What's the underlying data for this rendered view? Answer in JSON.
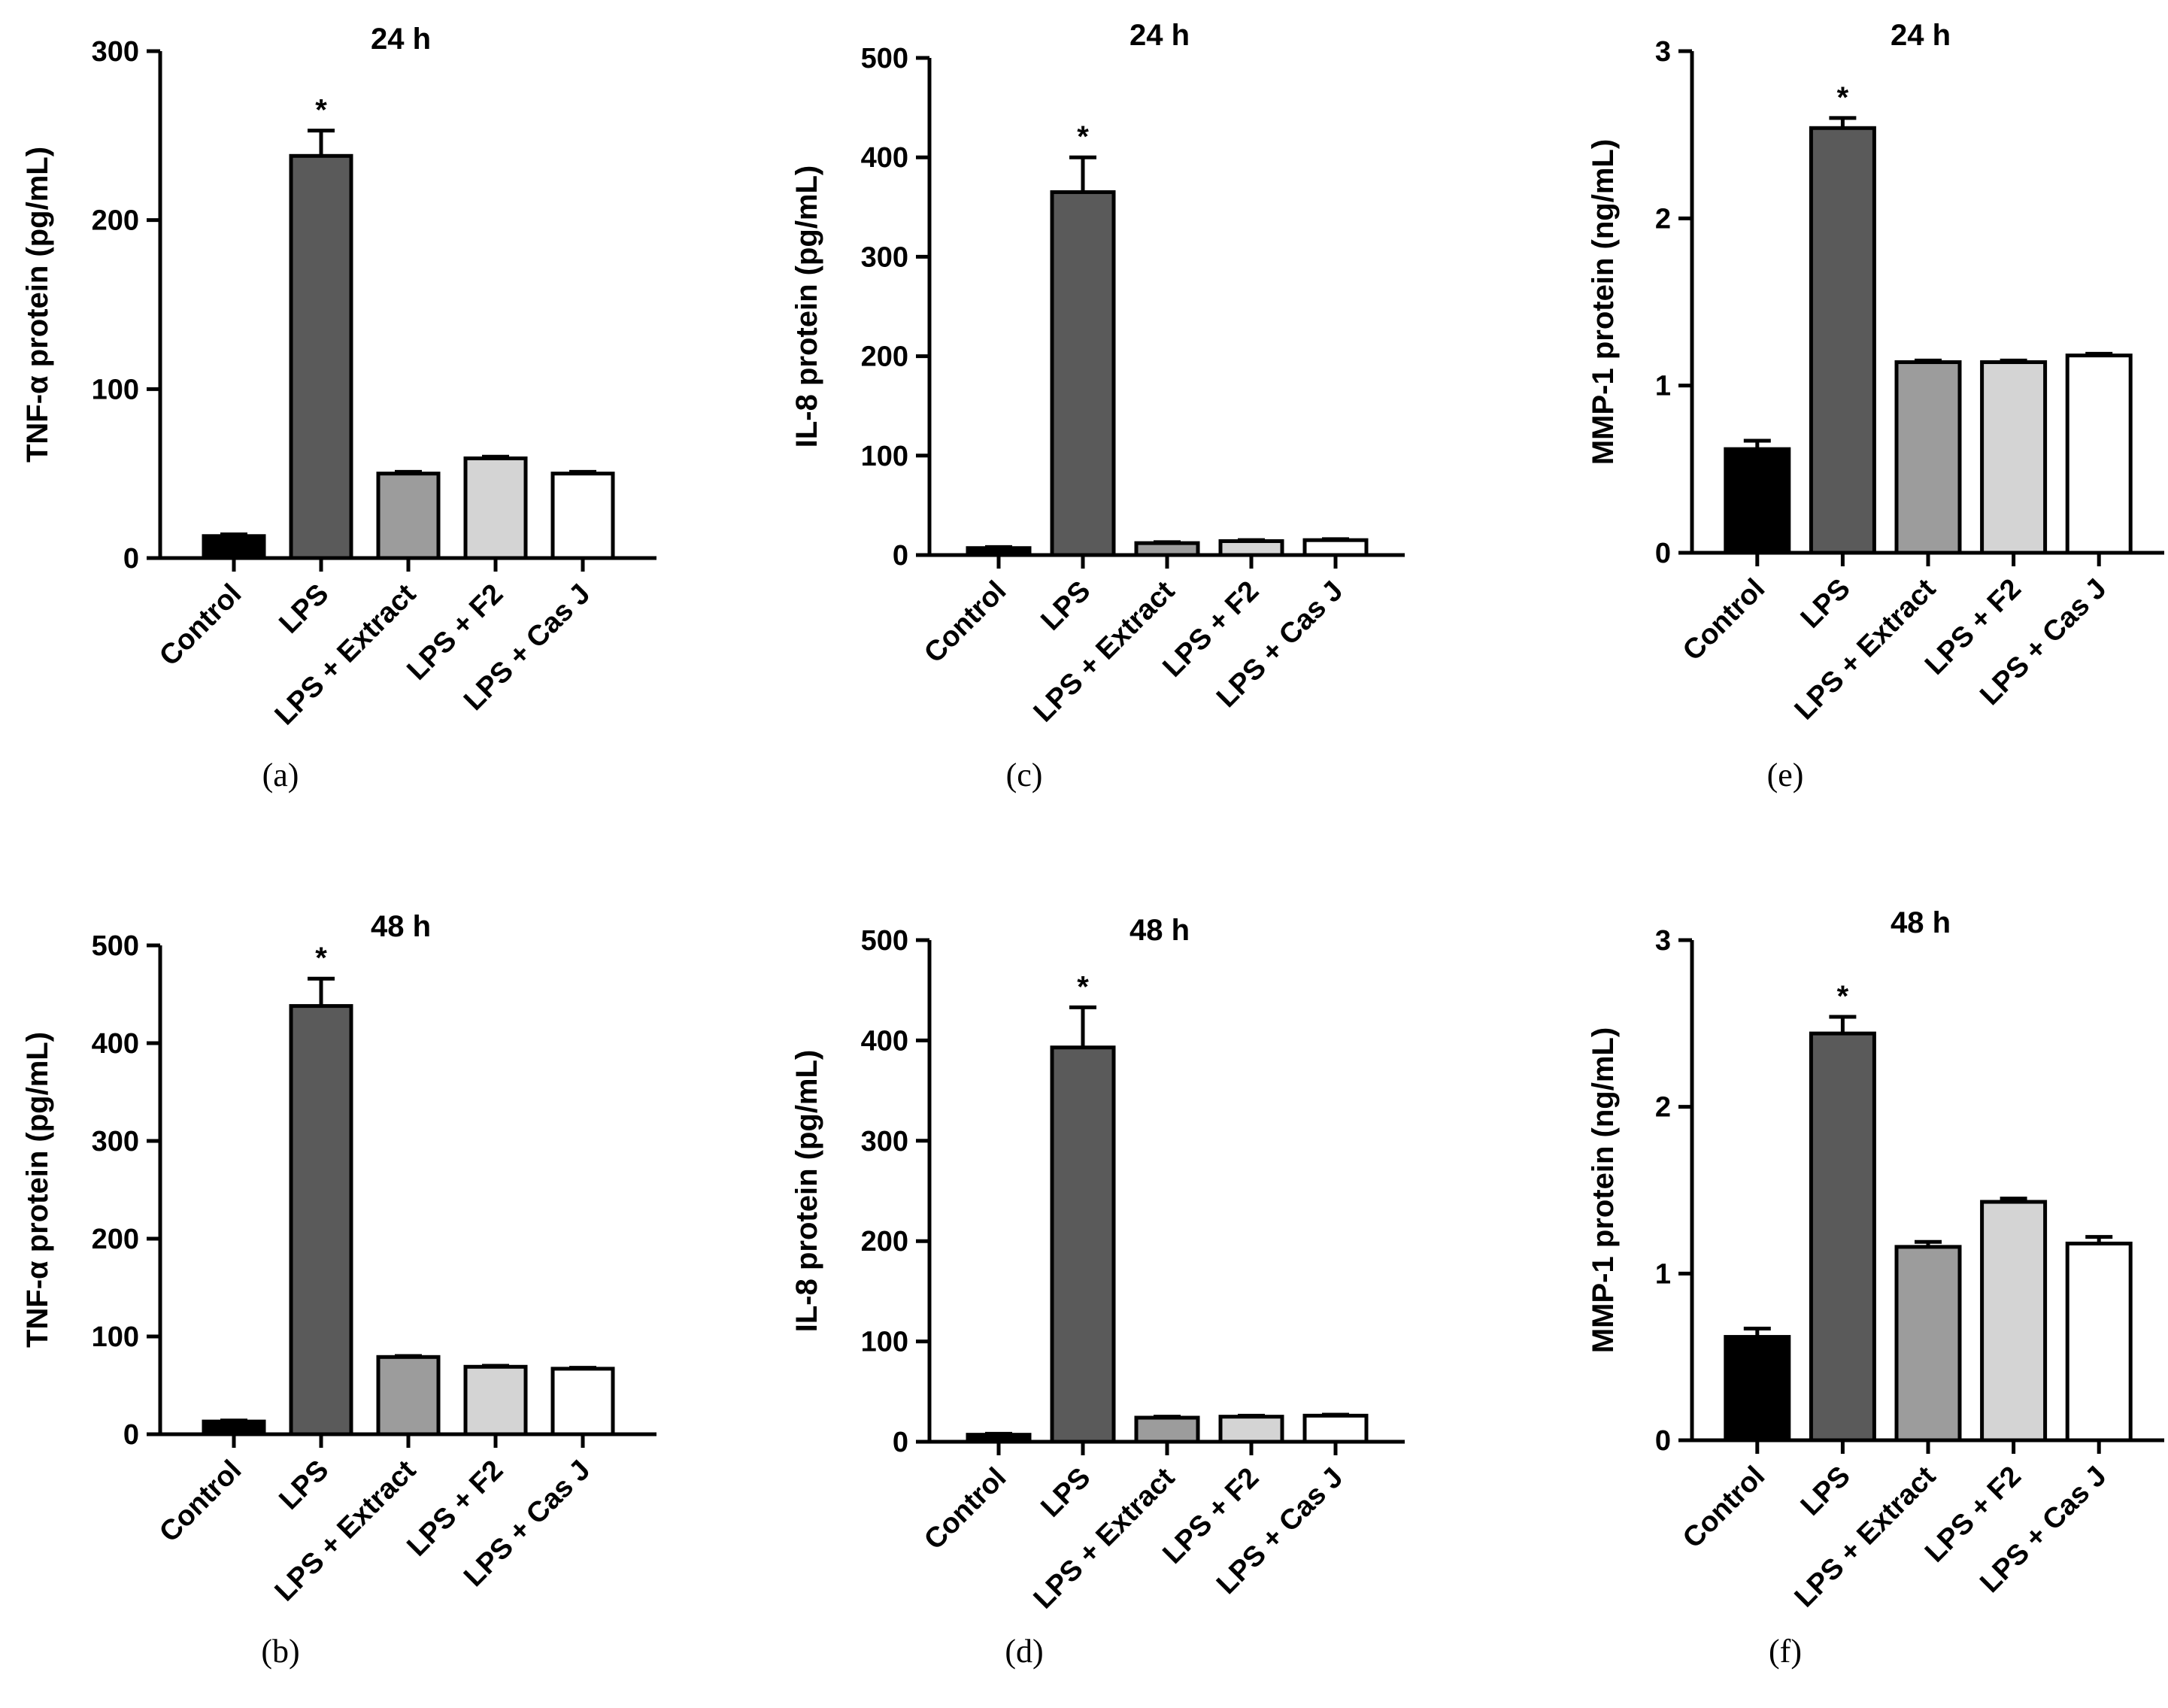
{
  "chart_data": [
    {
      "panel": "(a)",
      "type": "bar",
      "title": "24 h",
      "ylabel": "TNF-α  protein (pg/mL)",
      "xlabel": "",
      "ylim": [
        0,
        300
      ],
      "yticks": [
        0,
        100,
        200,
        300
      ],
      "categories": [
        "Control",
        "LPS",
        "LPS + Extract",
        "LPS + F2",
        "LPS + Cas J"
      ],
      "values": [
        13,
        238,
        50,
        59,
        50
      ],
      "errors": [
        1,
        15,
        1,
        1,
        1
      ],
      "significance": [
        "",
        "*",
        "",
        "",
        ""
      ],
      "colors": [
        "#000000",
        "#5a5a5a",
        "#9c9c9c",
        "#d4d4d4",
        "#ffffff"
      ]
    },
    {
      "panel": "(c)",
      "type": "bar",
      "title": "24 h",
      "ylabel": "IL-8 protein (pg/mL)",
      "xlabel": "",
      "ylim": [
        0,
        500
      ],
      "yticks": [
        0,
        100,
        200,
        300,
        400,
        500
      ],
      "categories": [
        "Control",
        "LPS",
        "LPS + Extract",
        "LPS + F2",
        "LPS + Cas J"
      ],
      "values": [
        7,
        365,
        12,
        14,
        15
      ],
      "errors": [
        1,
        35,
        1,
        1,
        1
      ],
      "significance": [
        "",
        "*",
        "",
        "",
        ""
      ],
      "colors": [
        "#000000",
        "#5a5a5a",
        "#9c9c9c",
        "#d4d4d4",
        "#ffffff"
      ]
    },
    {
      "panel": "(e)",
      "type": "bar",
      "title": "24 h",
      "ylabel": "MMP-1 protein (ng/mL)",
      "xlabel": "",
      "ylim": [
        0,
        3
      ],
      "yticks": [
        0,
        1,
        2,
        3
      ],
      "categories": [
        "Control",
        "LPS",
        "LPS + Extract",
        "LPS + F2",
        "LPS + Cas J"
      ],
      "values": [
        0.62,
        2.54,
        1.14,
        1.14,
        1.18
      ],
      "errors": [
        0.05,
        0.06,
        0.01,
        0.01,
        0.01
      ],
      "significance": [
        "",
        "*",
        "",
        "",
        ""
      ],
      "colors": [
        "#000000",
        "#5a5a5a",
        "#9c9c9c",
        "#d4d4d4",
        "#ffffff"
      ]
    },
    {
      "panel": "(b)",
      "type": "bar",
      "title": "48 h",
      "ylabel": "TNF-α  protein (pg/mL)",
      "xlabel": "",
      "ylim": [
        0,
        500
      ],
      "yticks": [
        0,
        100,
        200,
        300,
        400,
        500
      ],
      "categories": [
        "Control",
        "LPS",
        "LPS + Extract",
        "LPS + F2",
        "LPS + Cas J"
      ],
      "values": [
        13,
        438,
        79,
        69,
        67
      ],
      "errors": [
        1,
        28,
        1,
        1,
        1
      ],
      "significance": [
        "",
        "*",
        "",
        "",
        ""
      ],
      "colors": [
        "#000000",
        "#5a5a5a",
        "#9c9c9c",
        "#d4d4d4",
        "#ffffff"
      ]
    },
    {
      "panel": "(d)",
      "type": "bar",
      "title": "48 h",
      "ylabel": "IL-8 protein (pg/mL)",
      "xlabel": "",
      "ylim": [
        0,
        500
      ],
      "yticks": [
        0,
        100,
        200,
        300,
        400,
        500
      ],
      "categories": [
        "Control",
        "LPS",
        "LPS + Extract",
        "LPS + F2",
        "LPS + Cas J"
      ],
      "values": [
        7,
        393,
        24,
        25,
        26
      ],
      "errors": [
        1,
        40,
        1,
        1,
        1
      ],
      "significance": [
        "",
        "*",
        "",
        "",
        ""
      ],
      "colors": [
        "#000000",
        "#5a5a5a",
        "#9c9c9c",
        "#d4d4d4",
        "#ffffff"
      ]
    },
    {
      "panel": "(f)",
      "type": "bar",
      "title": "48 h",
      "ylabel": "MMP-1 protein (ng/mL)",
      "xlabel": "",
      "ylim": [
        0,
        3
      ],
      "yticks": [
        0,
        1,
        2,
        3
      ],
      "categories": [
        "Control",
        "LPS",
        "LPS + Extract",
        "LPS + F2",
        "LPS + Cas J"
      ],
      "values": [
        0.62,
        2.44,
        1.16,
        1.43,
        1.18
      ],
      "errors": [
        0.05,
        0.1,
        0.03,
        0.02,
        0.04
      ],
      "significance": [
        "",
        "*",
        "",
        "",
        ""
      ],
      "colors": [
        "#000000",
        "#5a5a5a",
        "#9c9c9c",
        "#d4d4d4",
        "#ffffff"
      ]
    }
  ]
}
